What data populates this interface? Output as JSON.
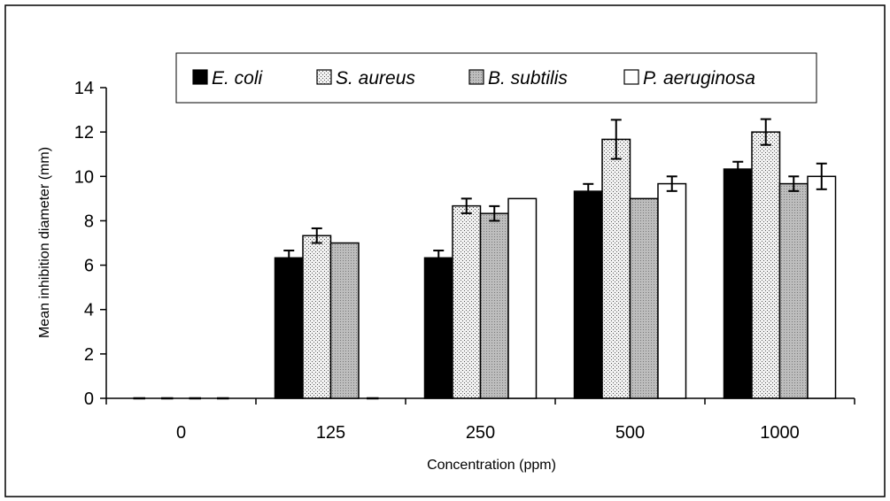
{
  "chart_data": {
    "type": "bar",
    "title": "",
    "xlabel": "Concentration (ppm)",
    "ylabel": "Mean inhibition diameter (mm)",
    "ylim": [
      0,
      14
    ],
    "yticks": [
      "0",
      "2",
      "4",
      "6",
      "8",
      "10",
      "12",
      "14"
    ],
    "categories": [
      "0",
      "125",
      "250",
      "500",
      "1000"
    ],
    "legend_position": "top",
    "grid": false,
    "series": [
      {
        "name": "E. coli",
        "pattern": "solid-black",
        "values": [
          0,
          6.33,
          6.33,
          9.33,
          10.33
        ],
        "errors": [
          0,
          0.33,
          0.33,
          0.33,
          0.33
        ]
      },
      {
        "name": "S. aureus",
        "pattern": "fine-dots",
        "values": [
          0,
          7.33,
          8.67,
          11.67,
          12.0
        ],
        "errors": [
          0,
          0.33,
          0.33,
          0.88,
          0.58
        ]
      },
      {
        "name": "B. subtilis",
        "pattern": "medium-grey",
        "values": [
          0,
          7.0,
          8.33,
          9.0,
          9.67
        ],
        "errors": [
          0,
          0,
          0.33,
          0,
          0.33
        ]
      },
      {
        "name": "P. aeruginosa",
        "pattern": "white",
        "values": [
          0,
          0,
          9.0,
          9.67,
          10.0
        ],
        "errors": [
          0,
          0,
          0,
          0.33,
          0.58
        ]
      }
    ]
  }
}
